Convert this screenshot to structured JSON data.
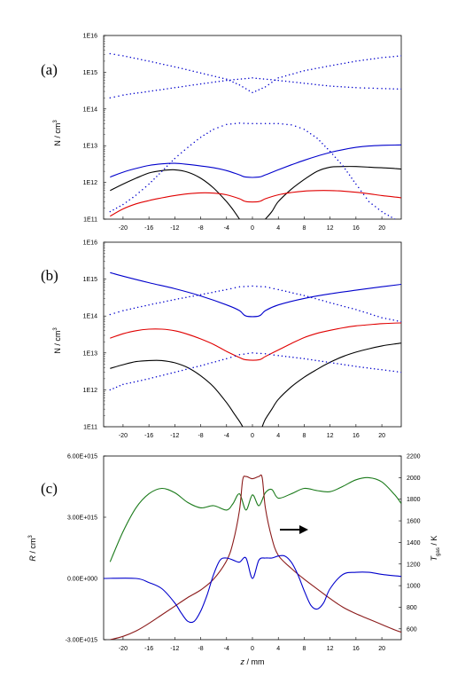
{
  "chart_data": [
    {
      "id": "a",
      "type": "line",
      "panel_label": "(a)",
      "ylabel": "N / cm",
      "ylabel_sup": "3",
      "yscale": "log",
      "ylim": [
        100000000000.0,
        1e+16
      ],
      "xlim": [
        -23,
        23
      ],
      "yticks": [
        "1E11",
        "1E12",
        "1E13",
        "1E14",
        "1E15",
        "1E16"
      ],
      "xticks": [
        "-20",
        "-16",
        "-12",
        "-8",
        "-4",
        "0",
        "4",
        "8",
        "12",
        "16",
        "20"
      ],
      "series": [
        {
          "style": "solid",
          "color": "#0000cc",
          "x": [
            -22,
            -20,
            -18,
            -16,
            -14,
            -12,
            -10,
            -8,
            -6,
            -4,
            -2,
            -1,
            1,
            2,
            4,
            6,
            8,
            10,
            12,
            14,
            16,
            18,
            20,
            22,
            23
          ],
          "y": [
            1400000000000.0,
            1900000000000.0,
            2400000000000.0,
            2900000000000.0,
            3200000000000.0,
            3300000000000.0,
            3100000000000.0,
            2800000000000.0,
            2500000000000.0,
            2100000000000.0,
            1600000000000.0,
            1400000000000.0,
            1400000000000.0,
            1600000000000.0,
            2200000000000.0,
            3000000000000.0,
            4000000000000.0,
            5200000000000.0,
            6500000000000.0,
            7800000000000.0,
            9000000000000.0,
            9800000000000.0,
            10200000000000.0,
            10400000000000.0,
            10500000000000.0
          ]
        },
        {
          "style": "solid",
          "color": "#000000",
          "x": [
            -22,
            -20,
            -18,
            -16,
            -14,
            -12,
            -10,
            -8,
            -6,
            -4,
            -3,
            -2
          ],
          "y": [
            600000000000.0,
            900000000000.0,
            1300000000000.0,
            1800000000000.0,
            2100000000000.0,
            2200000000000.0,
            1900000000000.0,
            1300000000000.0,
            700000000000.0,
            300000000000.0,
            180000000000.0,
            100000000000.0
          ]
        },
        {
          "style": "solid",
          "color": "#000000",
          "x": [
            2,
            3,
            4,
            6,
            8,
            10,
            12,
            14,
            16,
            18,
            20,
            22,
            23
          ],
          "y": [
            100000000000.0,
            160000000000.0,
            300000000000.0,
            650000000000.0,
            1200000000000.0,
            2000000000000.0,
            2600000000000.0,
            2700000000000.0,
            2700000000000.0,
            2600000000000.0,
            2500000000000.0,
            2400000000000.0,
            2300000000000.0
          ]
        },
        {
          "style": "solid",
          "color": "#e00000",
          "x": [
            -22,
            -20,
            -18,
            -16,
            -14,
            -12,
            -10,
            -8,
            -6,
            -4,
            -2,
            -1,
            1,
            2,
            4,
            6,
            8,
            10,
            12,
            14,
            16,
            18,
            20,
            22,
            23
          ],
          "y": [
            120000000000.0,
            190000000000.0,
            260000000000.0,
            320000000000.0,
            380000000000.0,
            440000000000.0,
            490000000000.0,
            520000000000.0,
            510000000000.0,
            460000000000.0,
            360000000000.0,
            300000000000.0,
            300000000000.0,
            360000000000.0,
            460000000000.0,
            530000000000.0,
            580000000000.0,
            600000000000.0,
            600000000000.0,
            580000000000.0,
            540000000000.0,
            490000000000.0,
            440000000000.0,
            400000000000.0,
            380000000000.0
          ]
        },
        {
          "style": "dotted",
          "color": "#0000cc",
          "x": [
            -22,
            -20,
            -18,
            -16,
            -14,
            -12,
            -10,
            -8,
            -6,
            -4,
            -2,
            0,
            2,
            4,
            6,
            8,
            10,
            12,
            14,
            16,
            18,
            20,
            22
          ],
          "y": [
            160000000000.0,
            250000000000.0,
            450000000000.0,
            900000000000.0,
            2000000000000.0,
            4500000000000.0,
            9000000000000.0,
            17000000000000.0,
            28000000000000.0,
            38000000000000.0,
            41000000000000.0,
            40000000000000.0,
            40000000000000.0,
            40000000000000.0,
            37000000000000.0,
            28000000000000.0,
            16000000000000.0,
            7000000000000.0,
            2800000000000.0,
            900000000000.0,
            300000000000.0,
            160000000000.0,
            100000000000.0
          ]
        },
        {
          "style": "dotted",
          "color": "#0000cc",
          "x": [
            -22,
            -20,
            -16,
            -12,
            -8,
            -4,
            -2,
            0,
            2,
            4,
            8,
            12,
            16,
            20,
            23
          ],
          "y": [
            3200000000000000.0,
            2800000000000000.0,
            2000000000000000.0,
            1400000000000000.0,
            950000000000000.0,
            650000000000000.0,
            450000000000000.0,
            280000000000000.0,
            400000000000000.0,
            700000000000000.0,
            1100000000000000.0,
            1500000000000000.0,
            2000000000000000.0,
            2500000000000000.0,
            2800000000000000.0
          ]
        },
        {
          "style": "dotted",
          "color": "#0000cc",
          "x": [
            -22,
            -20,
            -16,
            -12,
            -8,
            -4,
            0,
            4,
            8,
            12,
            16,
            20,
            23
          ],
          "y": [
            200000000000000.0,
            240000000000000.0,
            300000000000000.0,
            380000000000000.0,
            480000000000000.0,
            600000000000000.0,
            700000000000000.0,
            600000000000000.0,
            500000000000000.0,
            420000000000000.0,
            380000000000000.0,
            360000000000000.0,
            350000000000000.0
          ]
        }
      ]
    },
    {
      "id": "b",
      "type": "line",
      "panel_label": "(b)",
      "ylabel": "N / cm",
      "ylabel_sup": "3",
      "yscale": "log",
      "ylim": [
        100000000000.0,
        1e+16
      ],
      "xlim": [
        -23,
        23
      ],
      "yticks": [
        "1E11",
        "1E12",
        "1E13",
        "1E14",
        "1E15",
        "1E16"
      ],
      "xticks": [
        "-20",
        "-16",
        "-12",
        "-8",
        "-4",
        "0",
        "4",
        "8",
        "12",
        "16",
        "20"
      ],
      "series": [
        {
          "style": "solid",
          "color": "#0000cc",
          "x": [
            -22,
            -20,
            -16,
            -12,
            -8,
            -4,
            -2,
            -1,
            1,
            2,
            4,
            8,
            12,
            16,
            20,
            23
          ],
          "y": [
            1500000000000000.0,
            1200000000000000.0,
            800000000000000.0,
            550000000000000.0,
            350000000000000.0,
            200000000000000.0,
            140000000000000.0,
            100000000000000.0,
            100000000000000.0,
            140000000000000.0,
            200000000000000.0,
            300000000000000.0,
            400000000000000.0,
            500000000000000.0,
            620000000000000.0,
            720000000000000.0
          ]
        },
        {
          "style": "solid",
          "color": "#e00000",
          "x": [
            -22,
            -20,
            -18,
            -16,
            -14,
            -12,
            -10,
            -8,
            -6,
            -4,
            -2,
            -1,
            1,
            2,
            4,
            6,
            8,
            10,
            12,
            14,
            16,
            18,
            20,
            23
          ],
          "y": [
            25000000000000.0,
            33000000000000.0,
            40000000000000.0,
            44000000000000.0,
            44000000000000.0,
            40000000000000.0,
            32000000000000.0,
            24000000000000.0,
            17000000000000.0,
            11000000000000.0,
            7500000000000.0,
            6500000000000.0,
            6500000000000.0,
            8000000000000.0,
            12000000000000.0,
            18000000000000.0,
            26000000000000.0,
            34000000000000.0,
            41000000000000.0,
            48000000000000.0,
            54000000000000.0,
            58000000000000.0,
            62000000000000.0,
            65000000000000.0
          ]
        },
        {
          "style": "solid",
          "color": "#000000",
          "x": [
            -22,
            -20,
            -18,
            -16,
            -14,
            -12,
            -10,
            -8,
            -6,
            -4,
            -3,
            -2,
            -1.5
          ],
          "y": [
            3800000000000.0,
            4800000000000.0,
            5800000000000.0,
            6200000000000.0,
            6200000000000.0,
            5400000000000.0,
            4000000000000.0,
            2400000000000.0,
            1200000000000.0,
            450000000000.0,
            250000000000.0,
            140000000000.0,
            100000000000.0
          ]
        },
        {
          "style": "solid",
          "color": "#000000",
          "x": [
            1.5,
            2,
            3,
            4,
            6,
            8,
            10,
            12,
            14,
            16,
            18,
            20,
            22,
            23
          ],
          "y": [
            100000000000.0,
            160000000000.0,
            300000000000.0,
            550000000000.0,
            1200000000000.0,
            2200000000000.0,
            3600000000000.0,
            5600000000000.0,
            8000000000000.0,
            10500000000000.0,
            13000000000000.0,
            15500000000000.0,
            17500000000000.0,
            18500000000000.0
          ]
        },
        {
          "style": "dotted",
          "color": "#0000cc",
          "x": [
            -22,
            -20,
            -16,
            -12,
            -8,
            -4,
            -2,
            0,
            2,
            4,
            8,
            12,
            16,
            20,
            23
          ],
          "y": [
            110000000000000.0,
            140000000000000.0,
            200000000000000.0,
            280000000000000.0,
            380000000000000.0,
            520000000000000.0,
            620000000000000.0,
            650000000000000.0,
            620000000000000.0,
            520000000000000.0,
            360000000000000.0,
            230000000000000.0,
            150000000000000.0,
            90000000000000.0,
            70000000000000.0
          ]
        },
        {
          "style": "dotted",
          "color": "#0000cc",
          "x": [
            -22,
            -20,
            -16,
            -12,
            -8,
            -4,
            -2,
            0,
            2,
            4,
            8,
            12,
            16,
            20,
            23
          ],
          "y": [
            1000000000000.0,
            1400000000000.0,
            2000000000000.0,
            3000000000000.0,
            4500000000000.0,
            7000000000000.0,
            9000000000000.0,
            10000000000000.0,
            9500000000000.0,
            8500000000000.0,
            7000000000000.0,
            5500000000000.0,
            4300000000000.0,
            3500000000000.0,
            3000000000000.0
          ]
        }
      ]
    },
    {
      "id": "c",
      "type": "line",
      "panel_label": "(c)",
      "ylabel": "R / cm",
      "ylabel_sup": "3",
      "ylabel_right": "T",
      "ylabel_right_sub": "gas",
      "ylabel_right_unit": " / K",
      "xlabel": "z / mm",
      "ylim": [
        -3000000000000000.0,
        6000000000000000.0
      ],
      "y2lim": [
        500,
        2200
      ],
      "xlim": [
        -23,
        23
      ],
      "yticks": [
        "-3.00E+015",
        "0.00E+000",
        "3.00E+015",
        "6.00E+015"
      ],
      "yticks_values": [
        -3000000000000000.0,
        0,
        3000000000000000.0,
        6000000000000000.0
      ],
      "y2ticks": [
        "600",
        "800",
        "1000",
        "1200",
        "1400",
        "1600",
        "1800",
        "2000",
        "2200"
      ],
      "y2ticks_values": [
        600,
        800,
        1000,
        1200,
        1400,
        1600,
        1800,
        2000,
        2200
      ],
      "xticks": [
        "-20",
        "-16",
        "-12",
        "-8",
        "-4",
        "0",
        "4",
        "8",
        "12",
        "16",
        "20"
      ],
      "arrow": "right",
      "series": [
        {
          "style": "solid",
          "color": "#1a7a1a",
          "axis": "right",
          "x": [
            -22,
            -20,
            -18,
            -16,
            -14,
            -12,
            -10,
            -8,
            -6,
            -4,
            -3,
            -2,
            -1,
            0,
            1,
            2,
            3,
            4,
            6,
            8,
            10,
            12,
            14,
            16,
            18,
            20,
            22,
            23
          ],
          "y": [
            1220,
            1500,
            1720,
            1850,
            1900,
            1860,
            1770,
            1720,
            1740,
            1700,
            1760,
            1850,
            1700,
            1840,
            1740,
            1860,
            1890,
            1810,
            1850,
            1900,
            1880,
            1870,
            1920,
            1980,
            2000,
            1960,
            1840,
            1760
          ]
        },
        {
          "style": "solid",
          "color": "#8b1a1a",
          "axis": "right",
          "x": [
            -22,
            -20,
            -18,
            -16,
            -14,
            -12,
            -10,
            -8,
            -6,
            -4,
            -3,
            -2,
            -1.5,
            -1,
            0,
            1,
            1.5,
            2,
            3,
            4,
            6,
            8,
            10,
            12,
            14,
            16,
            18,
            20,
            22,
            23
          ],
          "y": [
            500,
            530,
            580,
            650,
            730,
            810,
            890,
            960,
            1060,
            1230,
            1400,
            1700,
            1980,
            2010,
            1990,
            2010,
            2000,
            1720,
            1440,
            1280,
            1160,
            1060,
            970,
            880,
            800,
            740,
            690,
            640,
            590,
            570
          ]
        },
        {
          "style": "solid",
          "color": "#0000cc",
          "axis": "left",
          "x": [
            -23,
            -18,
            -16,
            -14,
            -12,
            -11,
            -10,
            -9,
            -8,
            -7,
            -6,
            -5,
            -4,
            -3,
            -2,
            -1,
            0,
            1,
            2,
            3,
            4,
            5,
            6,
            7,
            8,
            9,
            10,
            11,
            12,
            14,
            16,
            18,
            20,
            23
          ],
          "y": [
            0,
            0,
            -200000000000000.0,
            -500000000000000.0,
            -1200000000000000.0,
            -1700000000000000.0,
            -2100000000000000.0,
            -2100000000000000.0,
            -1600000000000000.0,
            -800000000000000.0,
            200000000000000.0,
            900000000000000.0,
            1000000000000000.0,
            900000000000000.0,
            800000000000000.0,
            1000000000000000.0,
            0.0,
            900000000000000.0,
            1000000000000000.0,
            1000000000000000.0,
            1100000000000000.0,
            1100000000000000.0,
            800000000000000.0,
            200000000000000.0,
            -600000000000000.0,
            -1300000000000000.0,
            -1500000000000000.0,
            -1200000000000000.0,
            -500000000000000.0,
            200000000000000.0,
            300000000000000.0,
            300000000000000.0,
            200000000000000.0,
            100000000000000.0
          ]
        }
      ]
    }
  ]
}
